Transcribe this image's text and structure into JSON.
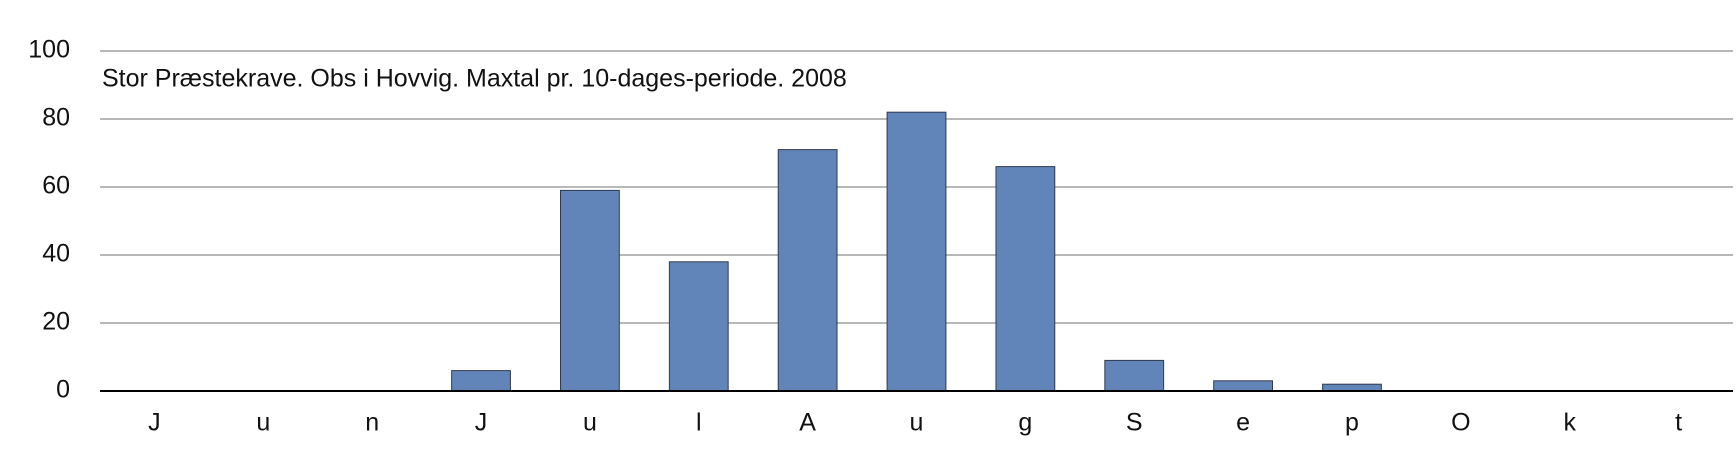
{
  "chart_data": {
    "type": "bar",
    "title": "Stor Præstekrave. Obs i Hovvig. Maxtal pr. 10-dages-periode. 2008",
    "categories": [
      "J",
      "u",
      "n",
      "J",
      "u",
      "l",
      "A",
      "u",
      "g",
      "S",
      "e",
      "p",
      "O",
      "k",
      "t"
    ],
    "values": [
      0,
      0,
      0,
      6,
      59,
      38,
      71,
      82,
      66,
      9,
      3,
      2,
      0,
      0,
      0
    ],
    "color": "#6185b8",
    "ylim": [
      0,
      100
    ],
    "yticks": [
      0,
      20,
      40,
      60,
      80,
      100
    ],
    "grid": true
  }
}
